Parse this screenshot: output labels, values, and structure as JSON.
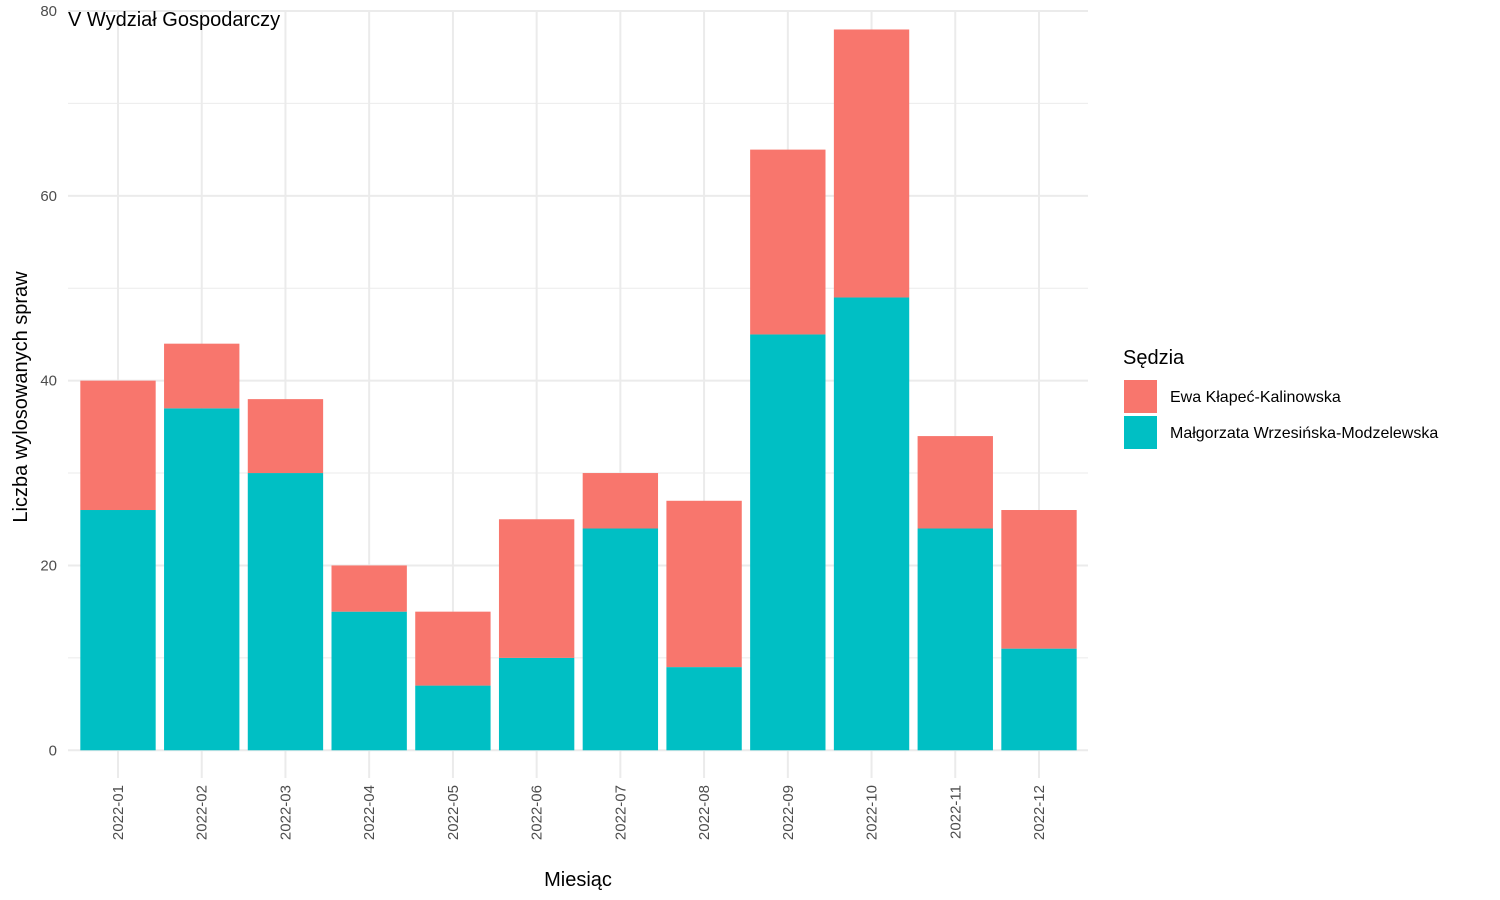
{
  "chart_data": {
    "type": "bar",
    "stacked": true,
    "title": "V Wydział Gospodarczy",
    "xlabel": "Miesiąc",
    "ylabel": "Liczba wylosowanych spraw",
    "ylim": [
      -3,
      80
    ],
    "yticks": [
      0,
      20,
      40,
      60,
      80
    ],
    "grid": true,
    "legend_position": "right",
    "legend_title": "Sędzia",
    "categories": [
      "2022-01",
      "2022-02",
      "2022-03",
      "2022-04",
      "2022-05",
      "2022-06",
      "2022-07",
      "2022-08",
      "2022-09",
      "2022-10",
      "2022-11",
      "2022-12"
    ],
    "series": [
      {
        "name": "Małgorzata Wrzesińska-Modzelewska",
        "color": "#00BFC4",
        "values": [
          26,
          37,
          30,
          15,
          7,
          10,
          24,
          9,
          45,
          49,
          24,
          11
        ]
      },
      {
        "name": "Ewa Kłapeć-Kalinowska",
        "color": "#F8766D",
        "values": [
          14,
          7,
          8,
          5,
          8,
          15,
          6,
          18,
          20,
          29,
          10,
          15
        ]
      }
    ],
    "legend_order": [
      1,
      0
    ],
    "gridline_color": "#ebebeb"
  }
}
